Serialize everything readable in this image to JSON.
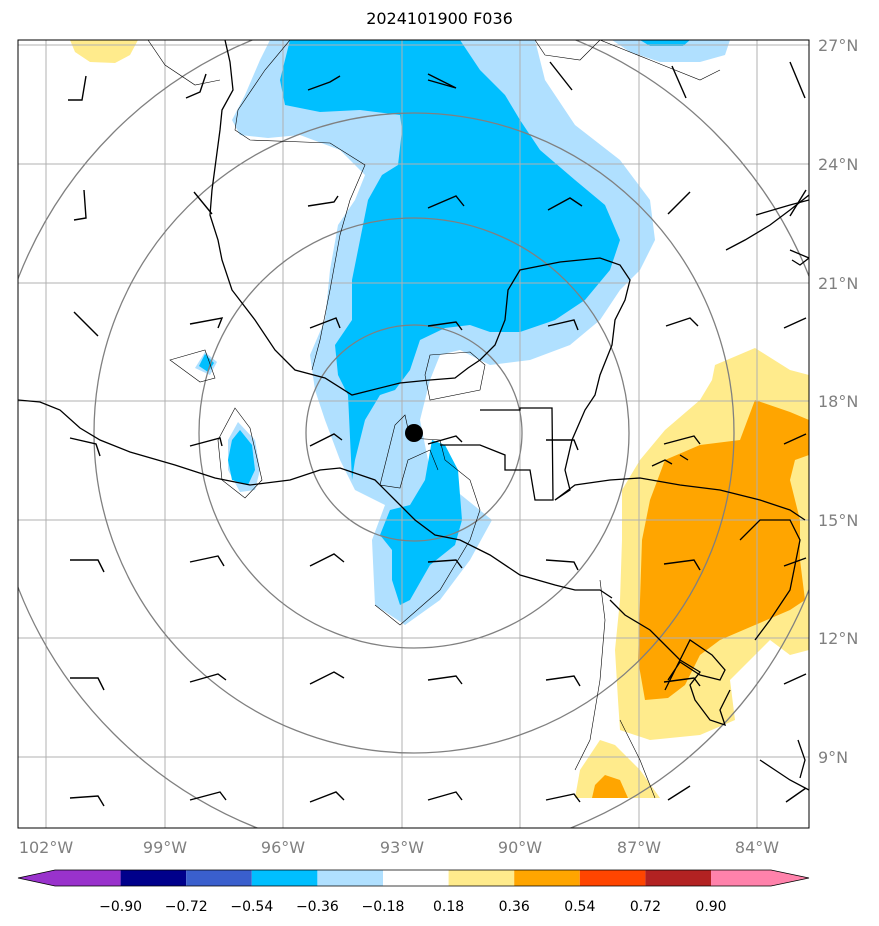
{
  "title": "2024101900 F036",
  "map": {
    "lon_labels": [
      "102°W",
      "99°W",
      "96°W",
      "93°W",
      "90°W",
      "87°W",
      "84°W"
    ],
    "lat_labels": [
      "27°N",
      "24°N",
      "21°N",
      "18°N",
      "15°N",
      "12°N",
      "9°N"
    ],
    "center_marker": {
      "lon": -92.75,
      "lat": 17.2
    },
    "range_rings": 4,
    "wind_barbs": "grid of wind barbs across domain"
  },
  "colorbar": {
    "labels": [
      "−0.90",
      "−0.72",
      "−0.54",
      "−0.36",
      "−0.18",
      "0.18",
      "0.36",
      "0.54",
      "0.72",
      "0.90"
    ],
    "colors": [
      "#9932cc",
      "#00008b",
      "#3a5fcd",
      "#00bfff",
      "#b0e0ff",
      "#ffffff",
      "#ffeb8c",
      "#ffa500",
      "#ff4500",
      "#b22222",
      "#ff82ab"
    ]
  },
  "colors": {
    "neg_light": "#b0e0ff",
    "neg": "#00bfff",
    "pos_light": "#ffeb8c",
    "pos": "#ffa500",
    "grid": "#b0b0b0",
    "ring": "#808080"
  }
}
